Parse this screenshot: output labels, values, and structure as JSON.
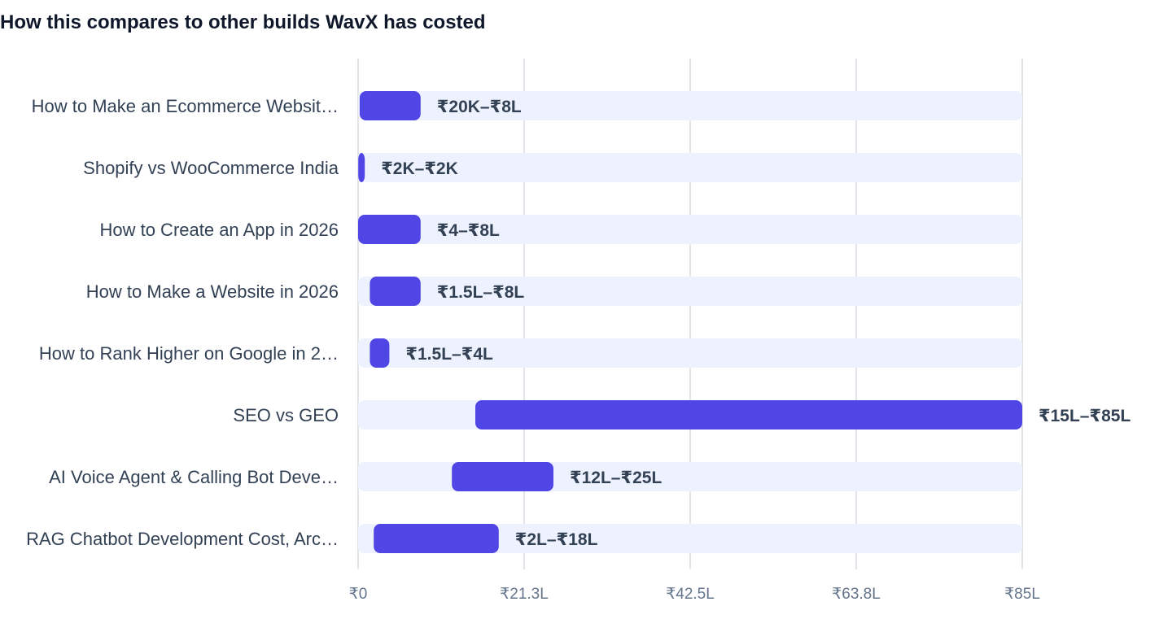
{
  "chart_data": {
    "type": "bar",
    "subtype": "floating-range",
    "orientation": "horizontal",
    "title": "How this compares to other builds WavX has costed",
    "xlabel": "",
    "ylabel": "",
    "xlim": [
      0,
      85
    ],
    "x_unit": "₹ lakh",
    "grid": "vertical",
    "legend": "none",
    "ticks": [
      {
        "value": 0,
        "label": "₹0"
      },
      {
        "value": 21.25,
        "label": "₹21.3L"
      },
      {
        "value": 42.5,
        "label": "₹42.5L"
      },
      {
        "value": 63.75,
        "label": "₹63.8L"
      },
      {
        "value": 85,
        "label": "₹85L"
      }
    ],
    "categories": [
      "How to Make an Ecommerce Websit…",
      "Shopify vs WooCommerce India",
      "How to Create an App in 2026",
      "How to Make a Website in 2026",
      "How to Rank Higher on Google in 2…",
      "SEO vs GEO",
      "AI Voice Agent & Calling Bot Deve…",
      "RAG Chatbot Development Cost, Arc…"
    ],
    "ranges": [
      {
        "low": 0.2,
        "high": 8,
        "label": "₹20K–₹8L"
      },
      {
        "low": 0.02,
        "high": 0.02,
        "label": "₹2K–₹2K"
      },
      {
        "low": 0,
        "high": 8,
        "label": "₹4–₹8L"
      },
      {
        "low": 1.5,
        "high": 8,
        "label": "₹1.5L–₹8L"
      },
      {
        "low": 1.5,
        "high": 4,
        "label": "₹1.5L–₹4L"
      },
      {
        "low": 15,
        "high": 85,
        "label": "₹15L–₹85L"
      },
      {
        "low": 12,
        "high": 25,
        "label": "₹12L–₹25L"
      },
      {
        "low": 2,
        "high": 18,
        "label": "₹2L–₹18L"
      }
    ],
    "colors": {
      "bar": "#4f46e5",
      "track": "#eef2ff",
      "grid": "#e2e5ea",
      "text": "#334155",
      "tick": "#64748b"
    }
  }
}
